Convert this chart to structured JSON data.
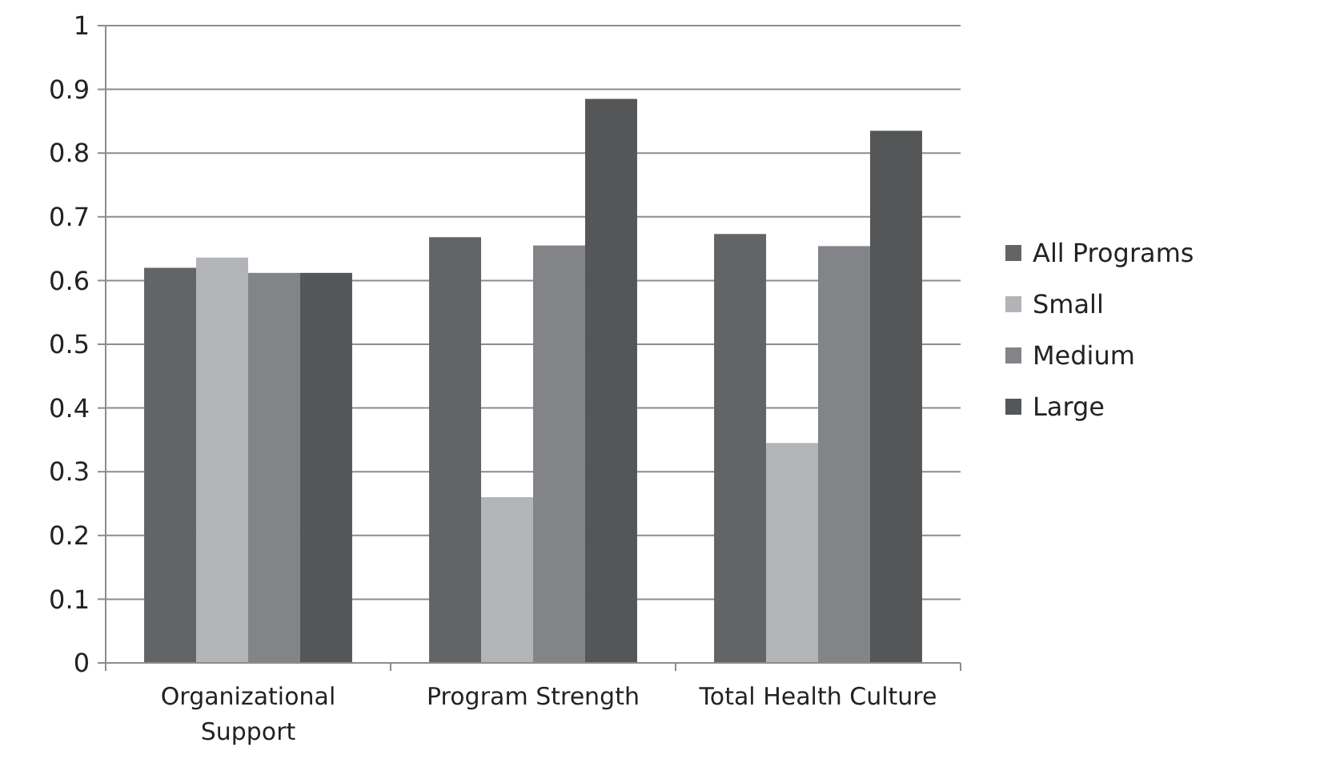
{
  "chart_data": {
    "type": "bar",
    "categories": [
      "Organizational Support",
      "Program Strength",
      "Total Health Culture"
    ],
    "series": [
      {
        "name": "All Programs",
        "color": "#636466",
        "values": [
          0.62,
          0.668,
          0.673
        ]
      },
      {
        "name": "Small",
        "color": "#b3b4b7",
        "values": [
          0.636,
          0.26,
          0.345
        ]
      },
      {
        "name": "Medium",
        "color": "#838487",
        "values": [
          0.612,
          0.655,
          0.654
        ]
      },
      {
        "name": "Large",
        "color": "#555658",
        "values": [
          0.612,
          0.885,
          0.835
        ]
      }
    ],
    "ylim": [
      0,
      1
    ],
    "yticks": [
      0,
      0.1,
      0.2,
      0.3,
      0.4,
      0.5,
      0.6,
      0.7,
      0.8,
      0.9,
      1
    ],
    "grid": "y",
    "legend": "right"
  }
}
